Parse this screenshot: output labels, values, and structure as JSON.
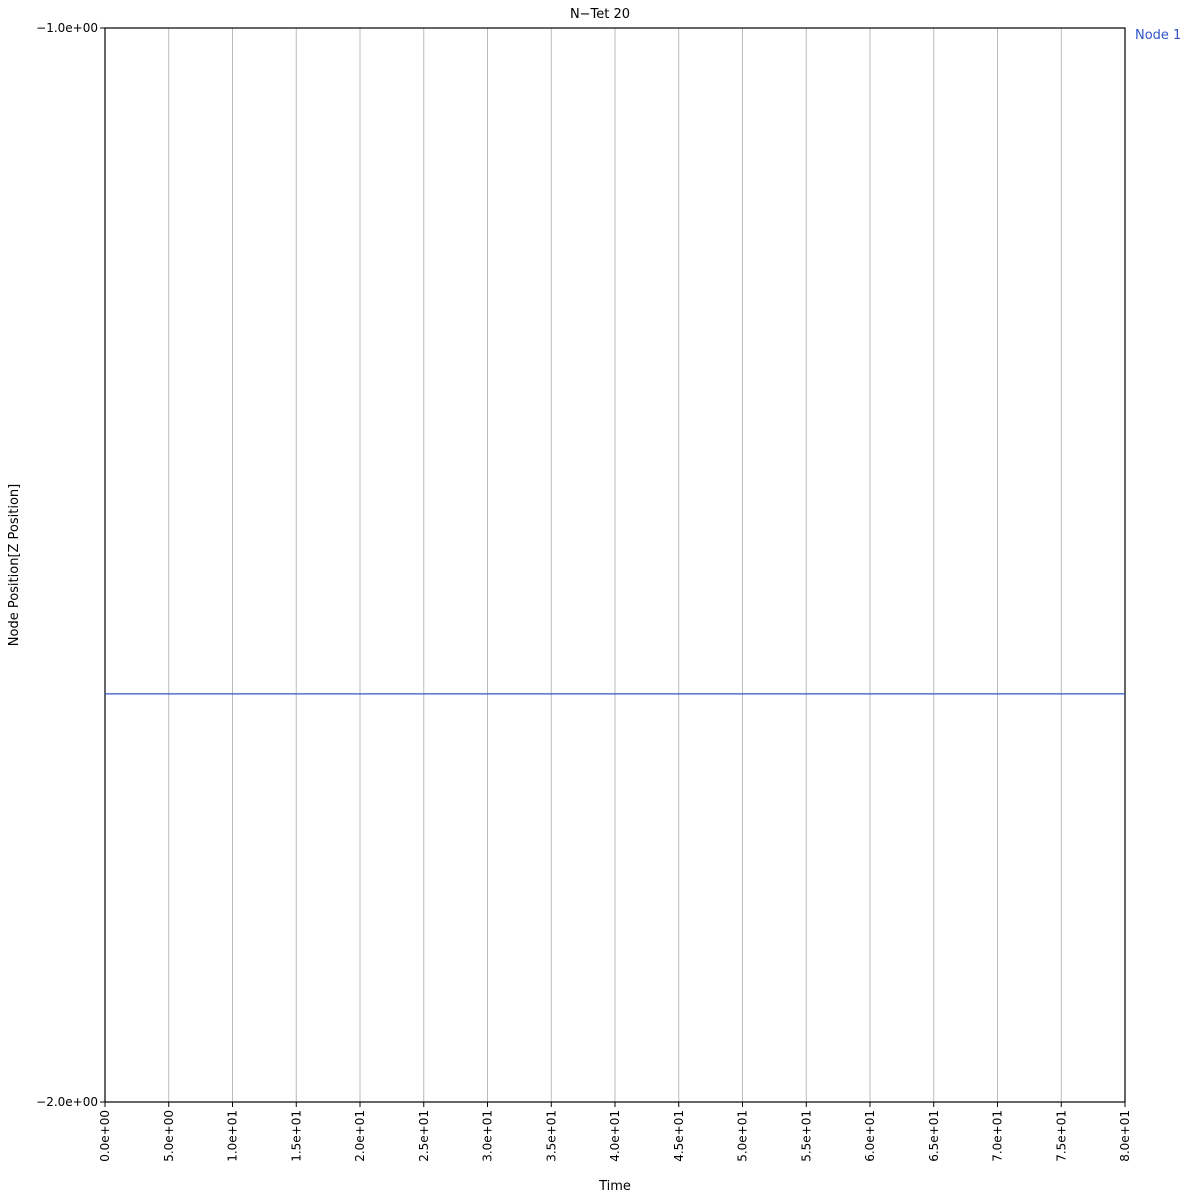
{
  "chart_data": {
    "type": "line",
    "title": "N−Tet 20",
    "xlabel": "Time",
    "ylabel": "Node Position[Z Position]",
    "xlim": [
      0,
      80
    ],
    "ylim": [
      -2.0,
      -1.0
    ],
    "x_ticks": [
      {
        "value": 0,
        "label": "0.0e+00"
      },
      {
        "value": 5,
        "label": "5.0e+00"
      },
      {
        "value": 10,
        "label": "1.0e+01"
      },
      {
        "value": 15,
        "label": "1.5e+01"
      },
      {
        "value": 20,
        "label": "2.0e+01"
      },
      {
        "value": 25,
        "label": "2.5e+01"
      },
      {
        "value": 30,
        "label": "3.0e+01"
      },
      {
        "value": 35,
        "label": "3.5e+01"
      },
      {
        "value": 40,
        "label": "4.0e+01"
      },
      {
        "value": 45,
        "label": "4.5e+01"
      },
      {
        "value": 50,
        "label": "5.0e+01"
      },
      {
        "value": 55,
        "label": "5.5e+01"
      },
      {
        "value": 60,
        "label": "6.0e+01"
      },
      {
        "value": 65,
        "label": "6.5e+01"
      },
      {
        "value": 70,
        "label": "7.0e+01"
      },
      {
        "value": 75,
        "label": "7.5e+01"
      },
      {
        "value": 80,
        "label": "8.0e+01"
      }
    ],
    "y_ticks": [
      {
        "value": -1.0,
        "label": "−1.0e+00"
      },
      {
        "value": -2.0,
        "label": "−2.0e+00"
      }
    ],
    "grid": {
      "vertical": true,
      "horizontal": false
    },
    "legend_placement": "top-right",
    "series": [
      {
        "name": "Node 1",
        "color": "#3355cc",
        "x": [
          0,
          80
        ],
        "y": [
          -1.62,
          -1.62
        ]
      }
    ]
  }
}
